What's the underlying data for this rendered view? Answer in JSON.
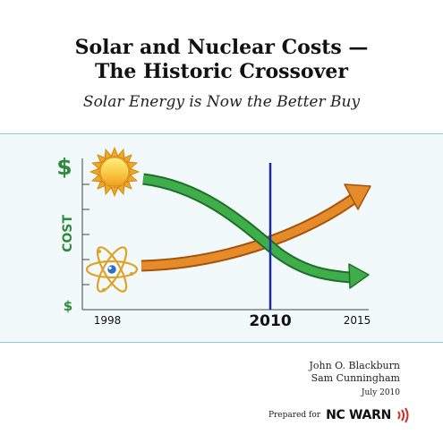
{
  "header": {
    "title_line1": "Solar and Nuclear Costs —",
    "title_line2": "The Historic Crossover",
    "subtitle": "Solar Energy is Now the Better Buy"
  },
  "chart_data": {
    "type": "line",
    "x": [
      1998,
      2010,
      2015
    ],
    "xlim": [
      1998,
      2015
    ],
    "tick_labels": [
      "1998",
      "2010",
      "2015"
    ],
    "ylabel": "COST",
    "y_top_label": "$",
    "y_bottom_label": "$",
    "marker_year": 2010,
    "series": [
      {
        "icon": "sun-icon",
        "trend": "decreasing",
        "color": "#2f9a3c"
      },
      {
        "icon": "atom-icon",
        "trend": "increasing",
        "color": "#d9781e"
      }
    ],
    "colors": {
      "marker_line": "#1c2aa8",
      "axis_label": "#2e8b3d"
    }
  },
  "credits": {
    "author1": "John O. Blackburn",
    "author2": "Sam Cunningham",
    "date": "July 2010",
    "prepared_for": "Prepared for",
    "organization": "NC WARN",
    "org_accent": "#d02a20"
  }
}
